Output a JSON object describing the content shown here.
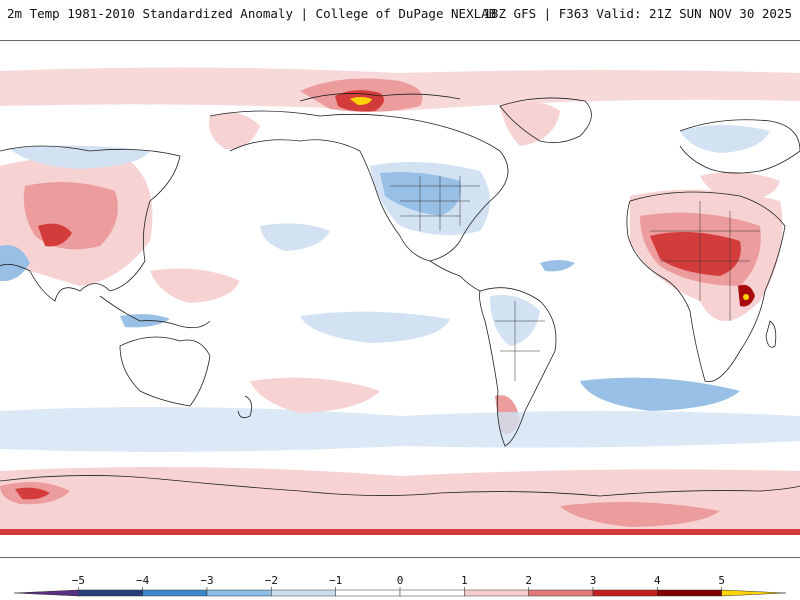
{
  "header": {
    "title": "2m Temp 1981-2010 Standardized Anomaly | College of DuPage NEXLAB",
    "run_info": "18Z GFS | F363 Valid: 21Z SUN NOV 30 2025"
  },
  "map": {
    "projection": "equirectangular, Pacific-centered",
    "land_outline_color": "#222222",
    "colors": {
      "warm_light": "#f6d2d2",
      "warm_mid": "#ec9c9c",
      "warm_strong": "#d43c3c",
      "warm_extreme": "#a80a0a",
      "peak": "#ffd400",
      "cool_light": "#d2e2f3",
      "cool_mid": "#98c0e6",
      "cool_strong": "#3c8cd2"
    }
  },
  "colorbar": {
    "labels": [
      "−5",
      "−4",
      "−3",
      "−2",
      "−1",
      "0",
      "1",
      "2",
      "3",
      "4",
      "5"
    ],
    "segment_colors": [
      "#5a2e82",
      "#283c7c",
      "#3c88cc",
      "#8cbde6",
      "#cce0f2",
      "#ffffff",
      "#ffffff",
      "#f6cccc",
      "#e27a7a",
      "#c42020",
      "#840000",
      "#ffd400"
    ]
  }
}
